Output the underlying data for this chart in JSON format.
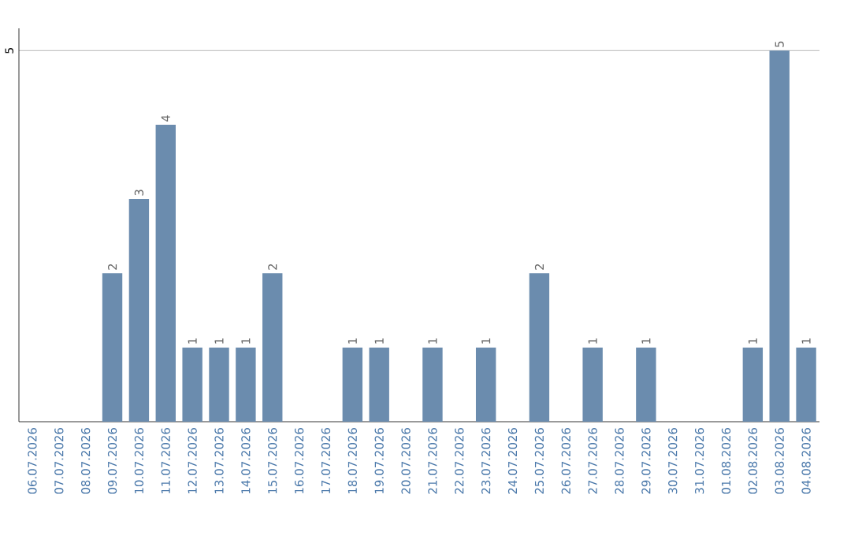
{
  "chart_data": {
    "type": "bar",
    "categories": [
      "06.07.2026",
      "07.07.2026",
      "08.07.2026",
      "09.07.2026",
      "10.07.2026",
      "11.07.2026",
      "12.07.2026",
      "13.07.2026",
      "14.07.2026",
      "15.07.2026",
      "16.07.2026",
      "17.07.2026",
      "18.07.2026",
      "19.07.2026",
      "20.07.2026",
      "21.07.2026",
      "22.07.2026",
      "23.07.2026",
      "24.07.2026",
      "25.07.2026",
      "26.07.2026",
      "27.07.2026",
      "28.07.2026",
      "29.07.2026",
      "30.07.2026",
      "31.07.2026",
      "01.08.2026",
      "02.08.2026",
      "03.08.2026",
      "04.08.2026"
    ],
    "values": [
      0,
      0,
      0,
      2,
      3,
      4,
      1,
      1,
      1,
      2,
      0,
      0,
      1,
      1,
      0,
      1,
      0,
      1,
      0,
      2,
      0,
      1,
      0,
      1,
      0,
      0,
      0,
      1,
      5,
      1
    ],
    "value_labels": [
      null,
      null,
      null,
      "2",
      "3",
      "4",
      "1",
      "1",
      "1",
      "2",
      null,
      null,
      "1",
      "1",
      null,
      "1",
      null,
      "1",
      null,
      "2",
      null,
      "1",
      null,
      "1",
      null,
      null,
      null,
      "1",
      "5",
      "1"
    ],
    "color": "#6b8cae",
    "ylim": [
      0,
      5.3
    ],
    "yticks": [
      5
    ],
    "grid": "y"
  }
}
